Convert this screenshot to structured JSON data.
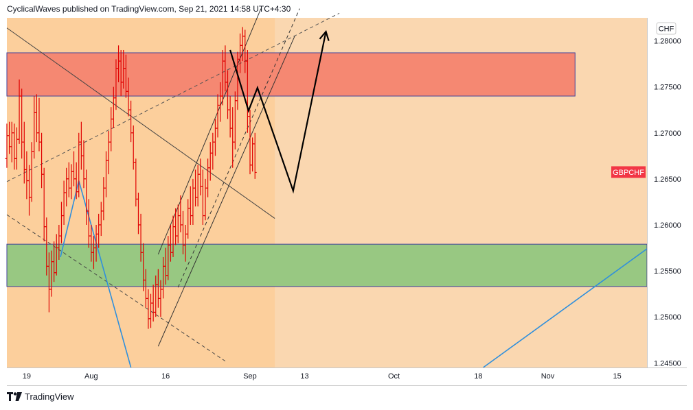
{
  "header": {
    "publisher_line": "CyclicalWaves published on TradingView.com, Sep 21, 2021 14:58 UTC+4:30"
  },
  "footer": {
    "brand": "TradingView"
  },
  "colors": {
    "panel_bg": "#fad7b0",
    "left_shade": "#fccf9c",
    "resistance_zone": "#f58872",
    "support_zone": "#98c882",
    "zone_border": "#3f3f9a",
    "candle": "#e00000",
    "projection": "#000000",
    "trendline_blue": "#2f8fdc",
    "symbol_tag": "#f23645"
  },
  "chart_data": {
    "type": "candlestick",
    "symbol": "GBPCHF",
    "currency": "CHF",
    "y_ticks": [
      "1.28000",
      "1.27500",
      "1.27000",
      "1.26500",
      "1.26000",
      "1.25500",
      "1.25000",
      "1.24500"
    ],
    "y_tick_values": [
      1.28,
      1.275,
      1.27,
      1.265,
      1.26,
      1.255,
      1.25,
      1.245
    ],
    "ylim": [
      1.2445,
      1.2825
    ],
    "x_ticks": [
      "19",
      "Aug",
      "16",
      "Sep",
      "13",
      "Oct",
      "18",
      "Nov",
      "15"
    ],
    "x_tick_days": [
      0,
      13,
      28,
      45,
      56,
      74,
      91,
      105,
      119
    ],
    "x_range_days": [
      -4,
      125
    ],
    "x_day_zero": "2021-07-19",
    "zones": [
      {
        "name": "resistance",
        "low": 1.274,
        "high": 1.2787
      },
      {
        "name": "support",
        "low": 1.2533,
        "high": 1.2579
      }
    ],
    "last_price_label": "GBPCHF",
    "last_price": 1.2657,
    "ohlc_bars": [
      [
        -4,
        1.2672,
        1.271,
        1.2662,
        1.2697
      ],
      [
        -3.5,
        1.2697,
        1.2712,
        1.2677,
        1.2685
      ],
      [
        -3,
        1.2685,
        1.2712,
        1.2668,
        1.27
      ],
      [
        -2.5,
        1.27,
        1.271,
        1.266,
        1.2672
      ],
      [
        -2,
        1.2672,
        1.2706,
        1.266,
        1.2693
      ],
      [
        -1.5,
        1.2693,
        1.2758,
        1.2688,
        1.274
      ],
      [
        -1,
        1.274,
        1.2748,
        1.2672,
        1.269
      ],
      [
        -0.5,
        1.269,
        1.2712,
        1.2645,
        1.266
      ],
      [
        0,
        1.266,
        1.268,
        1.2628,
        1.2648
      ],
      [
        0.5,
        1.2648,
        1.2665,
        1.261,
        1.263
      ],
      [
        1,
        1.263,
        1.269,
        1.2625,
        1.268
      ],
      [
        1.5,
        1.268,
        1.274,
        1.2672,
        1.2722
      ],
      [
        2,
        1.2722,
        1.2742,
        1.269,
        1.27
      ],
      [
        2.5,
        1.27,
        1.2738,
        1.268,
        1.269
      ],
      [
        3,
        1.269,
        1.27,
        1.264,
        1.2655
      ],
      [
        3.5,
        1.2655,
        1.2662,
        1.2582,
        1.2598
      ],
      [
        4,
        1.2598,
        1.2608,
        1.2545,
        1.2555
      ],
      [
        4.5,
        1.2555,
        1.257,
        1.2505,
        1.253
      ],
      [
        5,
        1.253,
        1.2572,
        1.2522,
        1.256
      ],
      [
        5.5,
        1.256,
        1.2582,
        1.2538,
        1.2548
      ],
      [
        6,
        1.2548,
        1.259,
        1.2545,
        1.2575
      ],
      [
        6.5,
        1.2575,
        1.26,
        1.2562,
        1.2588
      ],
      [
        7,
        1.2588,
        1.2625,
        1.258,
        1.261
      ],
      [
        7.5,
        1.261,
        1.2648,
        1.26,
        1.2635
      ],
      [
        8,
        1.2635,
        1.2662,
        1.262,
        1.265
      ],
      [
        8.5,
        1.265,
        1.2668,
        1.263,
        1.264
      ],
      [
        9,
        1.264,
        1.2666,
        1.2628,
        1.2658
      ],
      [
        9.5,
        1.2658,
        1.268,
        1.2642,
        1.265
      ],
      [
        10,
        1.265,
        1.2668,
        1.2628,
        1.2636
      ],
      [
        10.5,
        1.2636,
        1.27,
        1.263,
        1.269
      ],
      [
        11,
        1.269,
        1.2712,
        1.266,
        1.2675
      ],
      [
        11.5,
        1.2675,
        1.2692,
        1.264,
        1.265
      ],
      [
        12,
        1.265,
        1.266,
        1.26,
        1.2615
      ],
      [
        12.5,
        1.2615,
        1.2628,
        1.2575,
        1.2588
      ],
      [
        13,
        1.2588,
        1.26,
        1.256,
        1.257
      ],
      [
        13.5,
        1.257,
        1.2588,
        1.2552,
        1.2575
      ],
      [
        14,
        1.2575,
        1.26,
        1.256,
        1.259
      ],
      [
        14.5,
        1.259,
        1.2612,
        1.2575,
        1.26
      ],
      [
        15,
        1.26,
        1.2625,
        1.2588,
        1.2615
      ],
      [
        15.5,
        1.2615,
        1.2652,
        1.2605,
        1.264
      ],
      [
        16,
        1.264,
        1.268,
        1.263,
        1.267
      ],
      [
        16.5,
        1.267,
        1.2702,
        1.2655,
        1.269
      ],
      [
        17,
        1.269,
        1.2728,
        1.268,
        1.2715
      ],
      [
        17.5,
        1.2715,
        1.275,
        1.2705,
        1.2738
      ],
      [
        18,
        1.2738,
        1.278,
        1.2725,
        1.277
      ],
      [
        18.5,
        1.277,
        1.2795,
        1.2755,
        1.2778
      ],
      [
        19,
        1.2778,
        1.279,
        1.274,
        1.2755
      ],
      [
        19.5,
        1.2755,
        1.279,
        1.2748,
        1.277
      ],
      [
        20,
        1.277,
        1.2785,
        1.2738,
        1.2745
      ],
      [
        20.5,
        1.2745,
        1.276,
        1.2718,
        1.2725
      ],
      [
        21,
        1.2725,
        1.2735,
        1.269,
        1.27
      ],
      [
        21.5,
        1.27,
        1.2708,
        1.266,
        1.2668
      ],
      [
        22,
        1.2668,
        1.2672,
        1.262,
        1.2628
      ],
      [
        22.5,
        1.2628,
        1.2635,
        1.259,
        1.26
      ],
      [
        23,
        1.26,
        1.2612,
        1.256,
        1.257
      ],
      [
        23.5,
        1.257,
        1.258,
        1.2528,
        1.254
      ],
      [
        24,
        1.254,
        1.2552,
        1.251,
        1.252
      ],
      [
        24.5,
        1.252,
        1.253,
        1.2487,
        1.2498
      ],
      [
        25,
        1.2498,
        1.2525,
        1.2488,
        1.2515
      ],
      [
        25.5,
        1.2515,
        1.2535,
        1.2495,
        1.2505
      ],
      [
        26,
        1.2505,
        1.2545,
        1.25,
        1.2535
      ],
      [
        26.5,
        1.2535,
        1.2552,
        1.251,
        1.252
      ],
      [
        27,
        1.252,
        1.254,
        1.25,
        1.253
      ],
      [
        27.5,
        1.253,
        1.2565,
        1.252,
        1.2555
      ],
      [
        28,
        1.2555,
        1.2575,
        1.2535,
        1.2545
      ],
      [
        28.5,
        1.2545,
        1.2588,
        1.254,
        1.2578
      ],
      [
        29,
        1.2578,
        1.26,
        1.256,
        1.257
      ],
      [
        29.5,
        1.257,
        1.261,
        1.2565,
        1.2598
      ],
      [
        30,
        1.2598,
        1.2618,
        1.2578,
        1.2588
      ],
      [
        30.5,
        1.2588,
        1.2622,
        1.258,
        1.261
      ],
      [
        31,
        1.261,
        1.2632,
        1.2592,
        1.26
      ],
      [
        31.5,
        1.26,
        1.2615,
        1.2568,
        1.2578
      ],
      [
        32,
        1.2578,
        1.26,
        1.256,
        1.259
      ],
      [
        32.5,
        1.259,
        1.2628,
        1.2585,
        1.2618
      ],
      [
        33,
        1.2618,
        1.2642,
        1.26,
        1.261
      ],
      [
        33.5,
        1.261,
        1.265,
        1.26,
        1.264
      ],
      [
        34,
        1.264,
        1.266,
        1.262,
        1.263
      ],
      [
        34.5,
        1.263,
        1.2665,
        1.262,
        1.2655
      ],
      [
        35,
        1.2655,
        1.2672,
        1.2632,
        1.2642
      ],
      [
        35.5,
        1.2642,
        1.266,
        1.26,
        1.261
      ],
      [
        36,
        1.261,
        1.265,
        1.2605,
        1.264
      ],
      [
        36.5,
        1.264,
        1.2672,
        1.263,
        1.2662
      ],
      [
        37,
        1.2662,
        1.269,
        1.2648,
        1.2678
      ],
      [
        37.5,
        1.2678,
        1.27,
        1.266,
        1.269
      ],
      [
        38,
        1.269,
        1.2715,
        1.2675,
        1.2705
      ],
      [
        38.5,
        1.2705,
        1.2742,
        1.2695,
        1.273
      ],
      [
        39,
        1.273,
        1.2755,
        1.2712,
        1.274
      ],
      [
        39.5,
        1.274,
        1.279,
        1.273,
        1.2778
      ],
      [
        40,
        1.2778,
        1.2795,
        1.2745,
        1.2755
      ],
      [
        40.5,
        1.2755,
        1.2768,
        1.2715,
        1.2725
      ],
      [
        41,
        1.2725,
        1.274,
        1.2695,
        1.2705
      ],
      [
        41.5,
        1.2705,
        1.2728,
        1.2662,
        1.269
      ],
      [
        42,
        1.269,
        1.2745,
        1.2682,
        1.2735
      ],
      [
        42.5,
        1.2735,
        1.2788,
        1.2725,
        1.278
      ],
      [
        43,
        1.278,
        1.2808,
        1.2765,
        1.2795
      ],
      [
        43.5,
        1.2795,
        1.2815,
        1.2778,
        1.2805
      ],
      [
        44,
        1.2805,
        1.2812,
        1.2765,
        1.2778
      ],
      [
        44.5,
        1.2778,
        1.279,
        1.27,
        1.2718
      ],
      [
        45,
        1.2718,
        1.2725,
        1.2655,
        1.2665
      ],
      [
        45.5,
        1.2665,
        1.2695,
        1.2658,
        1.2688
      ],
      [
        46,
        1.2688,
        1.27,
        1.265,
        1.2657
      ]
    ],
    "trendlines": [
      {
        "name": "descending-trendline",
        "style": "solid",
        "color": "#444444",
        "points": [
          [
            -4,
            1.2814
          ],
          [
            50,
            1.2607
          ]
        ]
      },
      {
        "name": "rising-dashed-trendline",
        "style": "dashed",
        "color": "#555555",
        "points": [
          [
            -4,
            1.2647
          ],
          [
            63,
            1.283
          ]
        ]
      },
      {
        "name": "lower-dashed-trendline",
        "style": "dashed",
        "color": "#444444",
        "points": [
          [
            -4,
            1.2611
          ],
          [
            40,
            1.2452
          ]
        ]
      },
      {
        "name": "channel-upper-line",
        "style": "solid",
        "color": "#333333",
        "points": [
          [
            26.5,
            1.2568
          ],
          [
            47.2,
            1.2835
          ]
        ]
      },
      {
        "name": "channel-lower-line",
        "style": "solid",
        "color": "#333333",
        "points": [
          [
            26.5,
            1.2468
          ],
          [
            54,
            1.2805
          ]
        ]
      },
      {
        "name": "channel-mid-dashed-line",
        "style": "dashed",
        "color": "#333333",
        "points": [
          [
            30.5,
            1.2532
          ],
          [
            55,
            1.2835
          ]
        ]
      },
      {
        "name": "blue-falling-line",
        "style": "solid",
        "color": "#2f8fdc",
        "points": [
          [
            10.5,
            1.2648
          ],
          [
            21,
            1.2445
          ]
        ]
      },
      {
        "name": "blue-rising-line",
        "style": "solid",
        "color": "#2f8fdc",
        "points": [
          [
            6.8,
            1.2565
          ],
          [
            10.5,
            1.2648
          ]
        ]
      },
      {
        "name": "blue-support-line",
        "style": "solid",
        "color": "#2f8fdc",
        "points": [
          [
            92,
            1.2445
          ],
          [
            125,
            1.2574
          ]
        ]
      }
    ],
    "projection_path": [
      [
        41,
        1.279
      ],
      [
        44.7,
        1.2724
      ],
      [
        46.5,
        1.2749
      ],
      [
        53.7,
        1.2637
      ],
      [
        60.3,
        1.281
      ]
    ]
  }
}
